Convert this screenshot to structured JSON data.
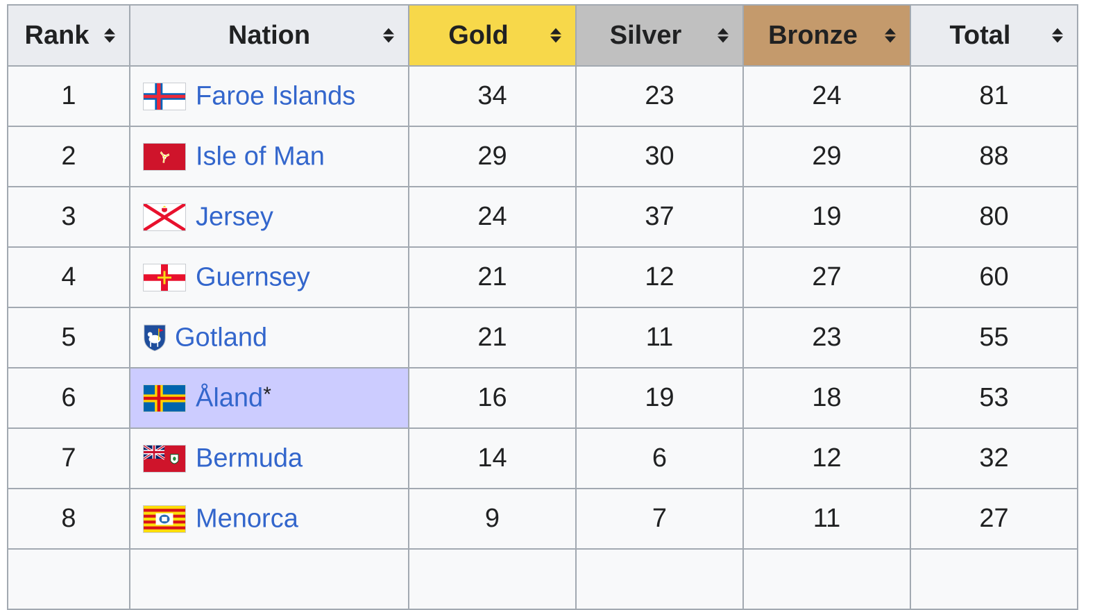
{
  "headers": {
    "rank": "Rank",
    "nation": "Nation",
    "gold": "Gold",
    "silver": "Silver",
    "bronze": "Bronze",
    "total": "Total"
  },
  "colors": {
    "gold": "#f7d84a",
    "silver": "#c0c0c0",
    "bronze": "#c49a6c",
    "host_highlight": "#ccccff",
    "link": "#3366cc"
  },
  "rows": [
    {
      "rank": "1",
      "nation": "Faroe Islands",
      "flag": "faroe-islands-flag",
      "gold": "34",
      "silver": "23",
      "bronze": "24",
      "total": "81"
    },
    {
      "rank": "2",
      "nation": "Isle of Man",
      "flag": "isle-of-man-flag",
      "gold": "29",
      "silver": "30",
      "bronze": "29",
      "total": "88"
    },
    {
      "rank": "3",
      "nation": "Jersey",
      "flag": "jersey-flag",
      "gold": "24",
      "silver": "37",
      "bronze": "19",
      "total": "80"
    },
    {
      "rank": "4",
      "nation": "Guernsey",
      "flag": "guernsey-flag",
      "gold": "21",
      "silver": "12",
      "bronze": "27",
      "total": "60"
    },
    {
      "rank": "5",
      "nation": "Gotland",
      "flag": "gotland-crest",
      "gold": "21",
      "silver": "11",
      "bronze": "23",
      "total": "55"
    },
    {
      "rank": "6",
      "nation": "Åland",
      "host_marker": "*",
      "flag": "aland-flag",
      "gold": "16",
      "silver": "19",
      "bronze": "18",
      "total": "53"
    },
    {
      "rank": "7",
      "nation": "Bermuda",
      "flag": "bermuda-flag",
      "gold": "14",
      "silver": "6",
      "bronze": "12",
      "total": "32"
    },
    {
      "rank": "8",
      "nation": "Menorca",
      "flag": "menorca-flag",
      "gold": "9",
      "silver": "7",
      "bronze": "11",
      "total": "27"
    }
  ]
}
